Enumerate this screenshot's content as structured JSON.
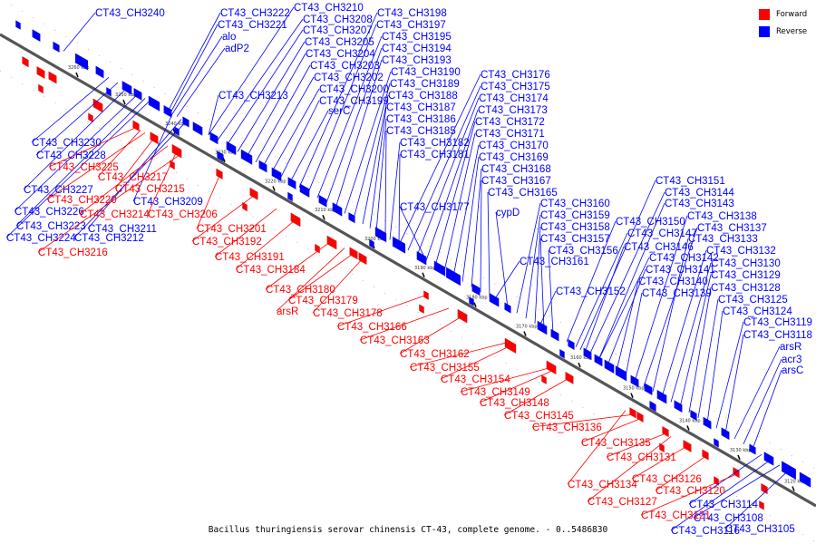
{
  "caption": "Bacillus thuringiensis serovar chinensis CT-43, complete genome. - 0..5486830",
  "legend": [
    {
      "label": "Forward",
      "color": "#ff0000"
    },
    {
      "label": "Reverse",
      "color": "#0000ff"
    }
  ],
  "colors": {
    "forward": "#ff0000",
    "reverse": "#0000ff",
    "axis": "#555555"
  },
  "ticks": [
    "3260 kbp",
    "3250 kbp",
    "3240 kbp",
    "3230 kbp",
    "3220 kbp",
    "3210 kbp",
    "3200 kbp",
    "3190 kbp",
    "3180 kbp",
    "3170 kbp",
    "3160 kbp",
    "3150 kbp",
    "3140 kbp",
    "3130 kbp",
    "3120 kbp"
  ],
  "reverse_labels": [
    "CT43_CH3240",
    "CT43_CH3222",
    "CT43_CH3221",
    "alo",
    "adP2",
    "CT43_CH3210",
    "CT43_CH3208",
    "CT43_CH3207",
    "CT43_CH3205",
    "CT43_CH3204",
    "CT43_CH3203",
    "CT43_CH3202",
    "CT43_CH3200",
    "CT43_CH3199",
    "serC",
    "CT43_CH3198",
    "CT43_CH3197",
    "CT43_CH3195",
    "CT43_CH3194",
    "CT43_CH3193",
    "CT43_CH3190",
    "CT43_CH3189",
    "CT43_CH3188",
    "CT43_CH3187",
    "CT43_CH3186",
    "CT43_CH3185",
    "CT43_CH3182",
    "CT43_CH3181",
    "CT43_CH3213",
    "CT43_CH3176",
    "CT43_CH3175",
    "CT43_CH3174",
    "CT43_CH3173",
    "CT43_CH3172",
    "CT43_CH3171",
    "CT43_CH3170",
    "CT43_CH3169",
    "CT43_CH3168",
    "CT43_CH3167",
    "CT43_CH3165",
    "CT43_CH3177",
    "cypD",
    "CT43_CH3160",
    "CT43_CH3159",
    "CT43_CH3158",
    "CT43_CH3157",
    "CT43_CH3156",
    "CT43_CH3161",
    "CT43_CH3152",
    "CT43_CH3151",
    "CT43_CH3144",
    "CT43_CH3143",
    "CT43_CH3150",
    "CT43_CH3147",
    "CT43_CH3146",
    "CT43_CH3142",
    "CT43_CH3141",
    "CT43_CH3140",
    "CT43_CH3139",
    "CT43_CH3138",
    "CT43_CH3137",
    "CT43_CH3133",
    "CT43_CH3132",
    "CT43_CH3130",
    "CT43_CH3129",
    "CT43_CH3128",
    "CT43_CH3125",
    "CT43_CH3124",
    "CT43_CH3119",
    "CT43_CH3118",
    "arsR",
    "acr3",
    "arsC",
    "CT43_CH3230",
    "CT43_CH3228",
    "CT43_CH3227",
    "CT43_CH3226",
    "CT43_CH3223",
    "CT43_CH3224",
    "CT43_CH3209",
    "CT43_CH3211",
    "CT43_CH3212",
    "CT43_CH3114",
    "CT43_CH3116",
    "CT43_CH3108",
    "CT43_CH3105"
  ],
  "forward_labels": [
    "CT43_CH3225",
    "CT43_CH3217",
    "CT43_CH3215",
    "CT43_CH3220",
    "CT43_CH3214",
    "CT43_CH3206",
    "CT43_CH3216",
    "CT43_CH3201",
    "CT43_CH3192",
    "CT43_CH3191",
    "CT43_CH3184",
    "CT43_CH3180",
    "CT43_CH3179",
    "arsR",
    "CT43_CH3178",
    "CT43_CH3166",
    "CT43_CH3163",
    "CT43_CH3162",
    "CT43_CH3155",
    "CT43_CH3154",
    "CT43_CH3149",
    "CT43_CH3148",
    "CT43_CH3145",
    "CT43_CH3136",
    "CT43_CH3135",
    "CT43_CH3131",
    "CT43_CH3134",
    "CT43_CH3126",
    "CT43_CH3127",
    "CT43_CH3120",
    "CT43_CH3121"
  ]
}
